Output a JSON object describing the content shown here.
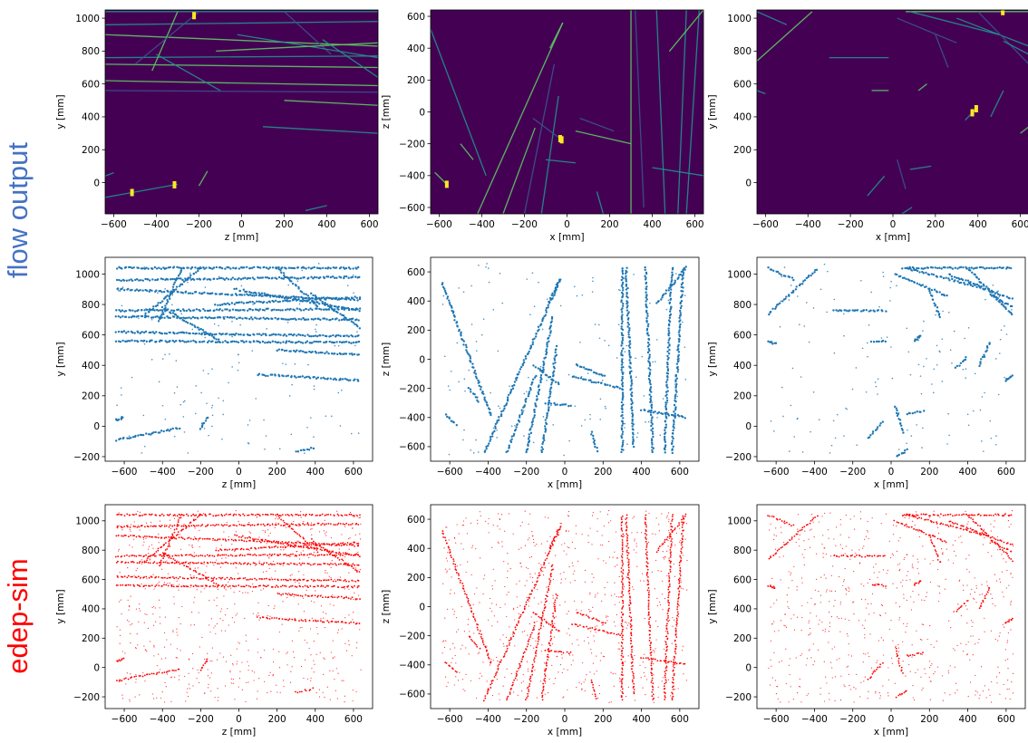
{
  "row_labels": [
    {
      "text": "flow output",
      "color": "#4472c4"
    },
    {
      "text": "edep-sim",
      "color": "#ff0000"
    }
  ],
  "colors": {
    "heatmap_background": "#440154",
    "heatmap_cmap": [
      "#440154",
      "#3b528b",
      "#21918c",
      "#5ec962",
      "#fde725"
    ],
    "flow_points": "#1f77b4",
    "sim_points": "#ff0000"
  },
  "chart_data": [
    {
      "type": "heatmap",
      "row": "flow output",
      "view": "zy",
      "xlabel": "z [mm]",
      "ylabel": "y [mm]",
      "xlim": [
        -640,
        640
      ],
      "ylim": [
        -190,
        1050
      ],
      "xticks": [
        -600,
        -400,
        -200,
        0,
        200,
        400,
        600
      ],
      "yticks": [
        0,
        200,
        400,
        600,
        800,
        1000
      ]
    },
    {
      "type": "heatmap",
      "row": "flow output",
      "view": "xz",
      "xlabel": "x [mm]",
      "ylabel": "z [mm]",
      "xlim": [
        -640,
        640
      ],
      "ylim": [
        -640,
        640
      ],
      "xticks": [
        -600,
        -400,
        -200,
        0,
        200,
        400,
        600
      ],
      "yticks": [
        -600,
        -400,
        -200,
        0,
        200,
        400,
        600
      ]
    },
    {
      "type": "heatmap",
      "row": "flow output",
      "view": "xy",
      "xlabel": "x [mm]",
      "ylabel": "y [mm]",
      "xlim": [
        -640,
        640
      ],
      "ylim": [
        -190,
        1050
      ],
      "xticks": [
        -600,
        -400,
        -200,
        0,
        200,
        400,
        600
      ],
      "yticks": [
        0,
        200,
        400,
        600,
        800,
        1000
      ]
    },
    {
      "type": "scatter",
      "row": "flow output",
      "view": "zy",
      "xlabel": "z [mm]",
      "ylabel": "y [mm]",
      "xlim": [
        -700,
        700
      ],
      "ylim": [
        -230,
        1110
      ],
      "xticks": [
        -600,
        -400,
        -200,
        0,
        200,
        400,
        600
      ],
      "yticks": [
        -200,
        0,
        200,
        400,
        600,
        800,
        1000
      ]
    },
    {
      "type": "scatter",
      "row": "flow output",
      "view": "xz",
      "xlabel": "x [mm]",
      "ylabel": "z [mm]",
      "xlim": [
        -700,
        700
      ],
      "ylim": [
        -700,
        700
      ],
      "xticks": [
        -600,
        -400,
        -200,
        0,
        200,
        400,
        600
      ],
      "yticks": [
        -600,
        -400,
        -200,
        0,
        200,
        400,
        600
      ]
    },
    {
      "type": "scatter",
      "row": "flow output",
      "view": "xy",
      "xlabel": "x [mm]",
      "ylabel": "y [mm]",
      "xlim": [
        -700,
        700
      ],
      "ylim": [
        -230,
        1110
      ],
      "xticks": [
        -600,
        -400,
        -200,
        0,
        200,
        400,
        600
      ],
      "yticks": [
        -200,
        0,
        200,
        400,
        600,
        800,
        1000
      ]
    },
    {
      "type": "scatter",
      "row": "edep-sim",
      "view": "zy",
      "xlabel": "z [mm]",
      "ylabel": "y [mm]",
      "xlim": [
        -700,
        700
      ],
      "ylim": [
        -280,
        1110
      ],
      "xticks": [
        -600,
        -400,
        -200,
        0,
        200,
        400,
        600
      ],
      "yticks": [
        -200,
        0,
        200,
        400,
        600,
        800,
        1000
      ]
    },
    {
      "type": "scatter",
      "row": "edep-sim",
      "view": "xz",
      "xlabel": "x [mm]",
      "ylabel": "z [mm]",
      "xlim": [
        -700,
        700
      ],
      "ylim": [
        -700,
        700
      ],
      "xticks": [
        -600,
        -400,
        -200,
        0,
        200,
        400,
        600
      ],
      "yticks": [
        -600,
        -400,
        -200,
        0,
        200,
        400,
        600
      ]
    },
    {
      "type": "scatter",
      "row": "edep-sim",
      "view": "xy",
      "xlabel": "x [mm]",
      "ylabel": "y [mm]",
      "xlim": [
        -700,
        700
      ],
      "ylim": [
        -280,
        1110
      ],
      "xticks": [
        -600,
        -400,
        -200,
        0,
        200,
        400,
        600
      ],
      "yticks": [
        -200,
        0,
        200,
        400,
        600,
        800,
        1000
      ]
    }
  ],
  "tracks": {
    "zy": [
      [
        [
          -640,
          960
        ],
        [
          640,
          980
        ]
      ],
      [
        [
          -640,
          900
        ],
        [
          640,
          830
        ]
      ],
      [
        [
          -640,
          760
        ],
        [
          640,
          770
        ]
      ],
      [
        [
          -640,
          720
        ],
        [
          640,
          700
        ]
      ],
      [
        [
          -640,
          620
        ],
        [
          640,
          590
        ]
      ],
      [
        [
          -640,
          560
        ],
        [
          640,
          550
        ]
      ],
      [
        [
          -640,
          1040
        ],
        [
          640,
          1040
        ]
      ],
      [
        [
          -300,
          1040
        ],
        [
          -420,
          680
        ]
      ],
      [
        [
          -200,
          1040
        ],
        [
          -500,
          720
        ]
      ],
      [
        [
          200,
          1040
        ],
        [
          420,
          780
        ]
      ],
      [
        [
          -20,
          900
        ],
        [
          640,
          760
        ]
      ],
      [
        [
          -400,
          780
        ],
        [
          -100,
          560
        ]
      ],
      [
        [
          -640,
          -90
        ],
        [
          -300,
          -10
        ]
      ],
      [
        [
          -200,
          -20
        ],
        [
          -160,
          70
        ]
      ],
      [
        [
          300,
          -170
        ],
        [
          400,
          -140
        ]
      ],
      [
        [
          100,
          340
        ],
        [
          640,
          300
        ]
      ],
      [
        [
          200,
          500
        ],
        [
          640,
          470
        ]
      ],
      [
        [
          -640,
          40
        ],
        [
          -600,
          60
        ]
      ],
      [
        [
          -120,
          800
        ],
        [
          640,
          850
        ]
      ],
      [
        [
          380,
          870
        ],
        [
          640,
          640
        ]
      ]
    ],
    "xz": [
      [
        [
          -640,
          520
        ],
        [
          -380,
          -400
        ]
      ],
      [
        [
          -420,
          -640
        ],
        [
          -20,
          560
        ]
      ],
      [
        [
          -300,
          -640
        ],
        [
          -150,
          -100
        ]
      ],
      [
        [
          -200,
          -640
        ],
        [
          -60,
          300
        ]
      ],
      [
        [
          -120,
          -640
        ],
        [
          -40,
          100
        ]
      ],
      [
        [
          300,
          -640
        ],
        [
          300,
          640
        ]
      ],
      [
        [
          360,
          -600
        ],
        [
          320,
          640
        ]
      ],
      [
        [
          460,
          -640
        ],
        [
          420,
          640
        ]
      ],
      [
        [
          520,
          -640
        ],
        [
          560,
          640
        ]
      ],
      [
        [
          560,
          -640
        ],
        [
          620,
          640
        ]
      ],
      [
        [
          -100,
          -300
        ],
        [
          40,
          -320
        ]
      ],
      [
        [
          40,
          -120
        ],
        [
          300,
          -200
        ]
      ],
      [
        [
          -160,
          -40
        ],
        [
          -20,
          -180
        ]
      ],
      [
        [
          60,
          -40
        ],
        [
          220,
          -120
        ]
      ],
      [
        [
          400,
          -350
        ],
        [
          640,
          -400
        ]
      ],
      [
        [
          -620,
          -380
        ],
        [
          -560,
          -460
        ]
      ],
      [
        [
          -500,
          -200
        ],
        [
          -440,
          -300
        ]
      ],
      [
        [
          -80,
          400
        ],
        [
          -20,
          560
        ]
      ],
      [
        [
          480,
          380
        ],
        [
          640,
          640
        ]
      ],
      [
        [
          140,
          -500
        ],
        [
          170,
          -640
        ]
      ]
    ],
    "xy": [
      [
        [
          -640,
          740
        ],
        [
          -380,
          1040
        ]
      ],
      [
        [
          -300,
          760
        ],
        [
          -20,
          760
        ]
      ],
      [
        [
          -640,
          1040
        ],
        [
          -500,
          960
        ]
      ],
      [
        [
          60,
          1040
        ],
        [
          640,
          1040
        ]
      ],
      [
        [
          20,
          1000
        ],
        [
          300,
          850
        ]
      ],
      [
        [
          300,
          1000
        ],
        [
          640,
          830
        ]
      ],
      [
        [
          400,
          1040
        ],
        [
          640,
          720
        ]
      ],
      [
        [
          80,
          1040
        ],
        [
          500,
          900
        ]
      ],
      [
        [
          -100,
          560
        ],
        [
          -20,
          560
        ]
      ],
      [
        [
          60,
          -40
        ],
        [
          20,
          140
        ]
      ],
      [
        [
          -120,
          -80
        ],
        [
          -40,
          40
        ]
      ],
      [
        [
          80,
          80
        ],
        [
          180,
          100
        ]
      ],
      [
        [
          600,
          300
        ],
        [
          640,
          340
        ]
      ],
      [
        [
          340,
          380
        ],
        [
          400,
          460
        ]
      ],
      [
        [
          460,
          400
        ],
        [
          520,
          560
        ]
      ],
      [
        [
          200,
          900
        ],
        [
          260,
          700
        ]
      ],
      [
        [
          520,
          860
        ],
        [
          640,
          780
        ]
      ],
      [
        [
          -640,
          560
        ],
        [
          -600,
          540
        ]
      ],
      [
        [
          120,
          560
        ],
        [
          160,
          600
        ]
      ],
      [
        [
          30,
          -200
        ],
        [
          90,
          -150
        ]
      ]
    ]
  }
}
